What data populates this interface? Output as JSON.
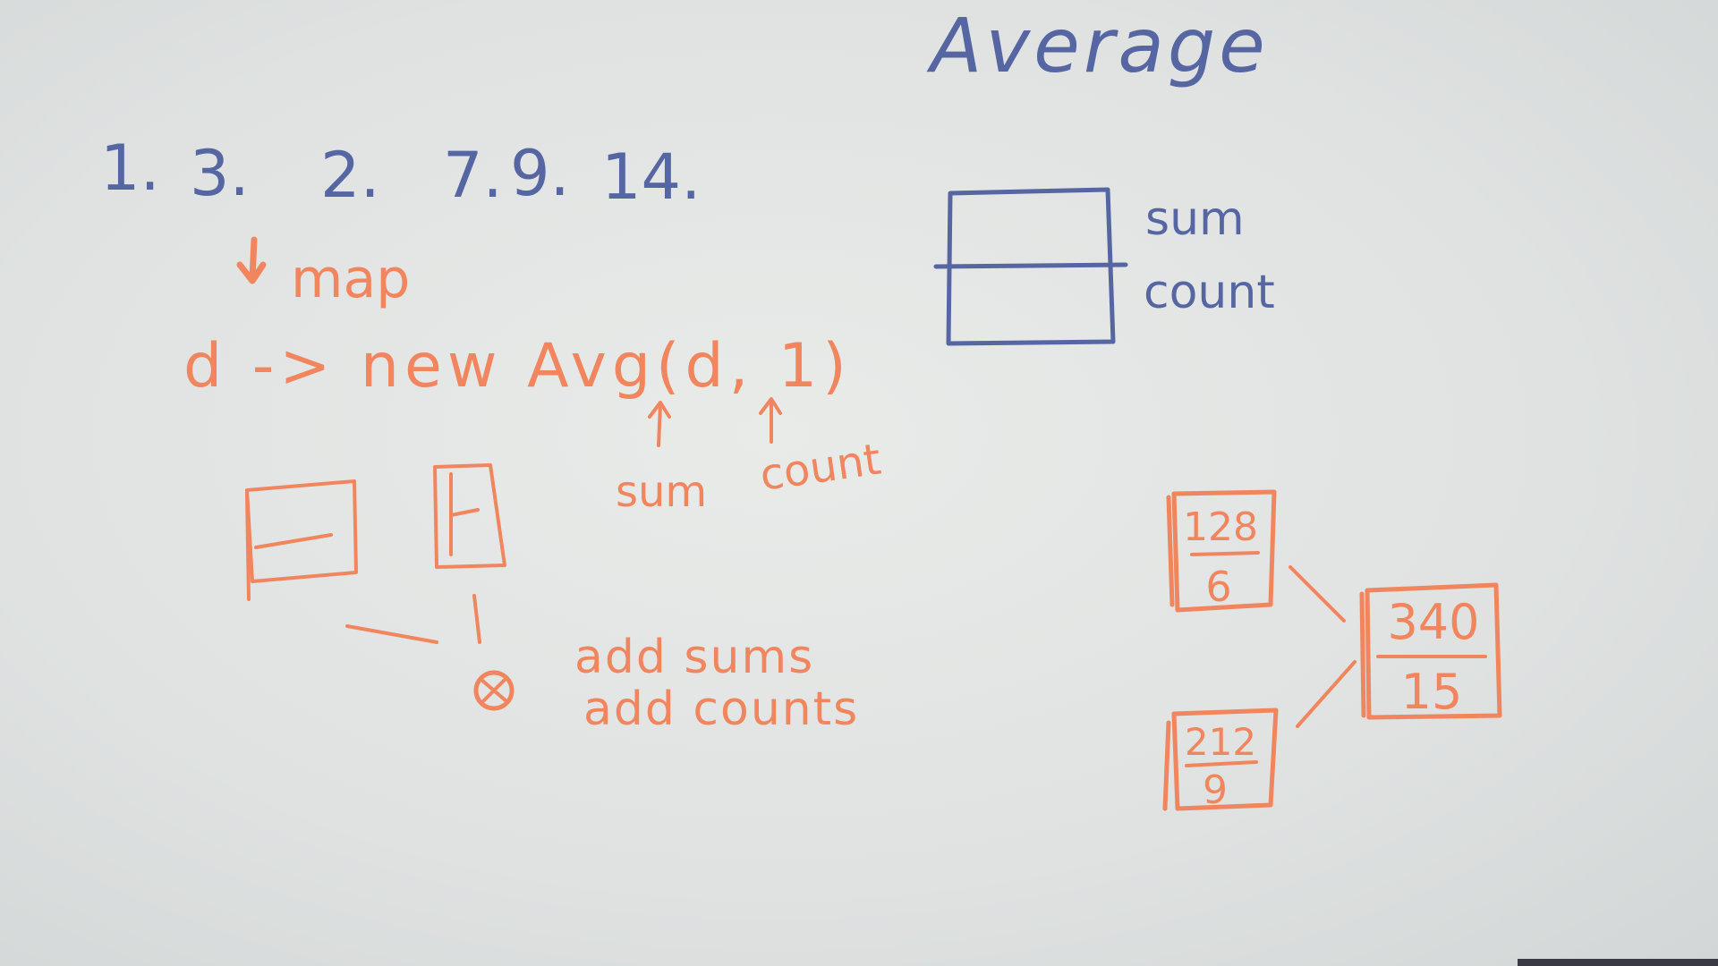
{
  "title": "Average",
  "numbers": [
    "1.",
    "3.",
    "2.",
    "7.",
    "9.",
    "14."
  ],
  "map_label": "map",
  "lambda_expr": "d -> new Avg(d, 1)",
  "sum_annotation": "sum",
  "count_annotation": "count",
  "struct_labels": {
    "sum": "sum",
    "count": "count"
  },
  "combine_labels": {
    "line1": "add sums",
    "line2": "add counts"
  },
  "partials": [
    {
      "sum": "128",
      "count": "6"
    },
    {
      "sum": "212",
      "count": "9"
    }
  ],
  "total": {
    "sum": "340",
    "count": "15"
  },
  "colors": {
    "blue_marker": "#5566a3",
    "orange_marker": "#f0855e",
    "board": "#e3e6e5"
  },
  "icons": {
    "map_arrow": "down-arrow-icon",
    "combine": "circle-x-icon"
  }
}
